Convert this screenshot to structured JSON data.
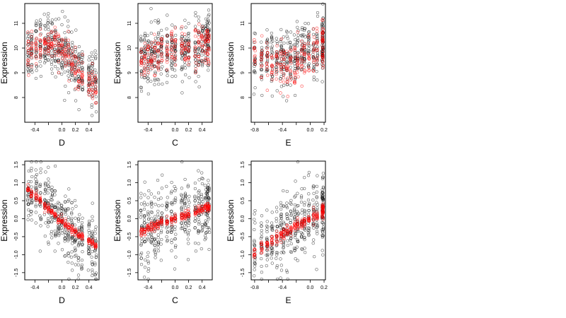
{
  "figure": {
    "layout": "2 rows x 3 columns of scatter panels",
    "colors": {
      "observed": "#000000",
      "fitted": "#ff0000",
      "frame": "#000000"
    },
    "marker": "open-circle"
  },
  "chart_data": [
    {
      "type": "scatter",
      "xlabel": "D",
      "ylabel": "Expression",
      "xlim": [
        -0.55,
        0.55
      ],
      "ylim": [
        7.0,
        11.8
      ],
      "xticks": [
        -0.4,
        -0.2,
        0.0,
        0.2,
        0.4
      ],
      "xtick_labels": [
        "-0.4",
        "",
        "0.0",
        "0.2",
        "0.4"
      ],
      "yticks": [
        8,
        9,
        10,
        11
      ],
      "ytick_labels": [
        "8",
        "9",
        "10",
        "11"
      ],
      "x_clusters": [
        -0.5,
        -0.45,
        -0.38,
        -0.32,
        -0.25,
        -0.2,
        -0.15,
        -0.1,
        -0.05,
        0.0,
        0.05,
        0.1,
        0.15,
        0.2,
        0.25,
        0.3,
        0.4,
        0.45,
        0.5
      ],
      "observed_summary": {
        "center": [
          9.9,
          10.0,
          10.1,
          10.1,
          10.2,
          10.2,
          10.2,
          10.1,
          10.0,
          9.9,
          9.8,
          9.6,
          9.4,
          9.2,
          9.1,
          8.9,
          8.8,
          8.6,
          8.6
        ],
        "spread": 0.55,
        "y_min": 7.9,
        "y_max": 11.6
      },
      "fitted_summary": {
        "center": [
          9.8,
          9.9,
          10.0,
          10.1,
          10.2,
          10.2,
          10.2,
          10.1,
          10.0,
          9.9,
          9.8,
          9.6,
          9.4,
          9.2,
          9.0,
          8.9,
          8.7,
          8.5,
          8.3
        ],
        "spread": 0.35
      }
    },
    {
      "type": "scatter",
      "xlabel": "C",
      "ylabel": "Expression",
      "xlim": [
        -0.55,
        0.55
      ],
      "ylim": [
        7.0,
        11.8
      ],
      "xticks": [
        -0.4,
        -0.2,
        0.0,
        0.2,
        0.4
      ],
      "xtick_labels": [
        "-0.4",
        "",
        "0.0",
        "0.2",
        "0.4"
      ],
      "yticks": [
        8,
        9,
        10,
        11
      ],
      "ytick_labels": [
        "8",
        "9",
        "10",
        "11"
      ],
      "x_clusters": [
        -0.5,
        -0.45,
        -0.4,
        -0.35,
        -0.3,
        -0.25,
        -0.2,
        -0.12,
        -0.05,
        0.0,
        0.1,
        0.15,
        0.2,
        0.3,
        0.35,
        0.4,
        0.45,
        0.48,
        0.5
      ],
      "observed_summary": {
        "center": [
          9.5,
          9.6,
          9.6,
          9.7,
          9.7,
          9.8,
          9.8,
          9.8,
          9.9,
          9.9,
          9.9,
          10.0,
          10.0,
          10.0,
          10.0,
          10.1,
          10.1,
          10.1,
          10.2
        ],
        "spread": 0.6,
        "y_min": 7.9,
        "y_max": 11.6
      },
      "fitted_summary": {
        "center": [
          9.5,
          9.55,
          9.6,
          9.65,
          9.7,
          9.75,
          9.8,
          9.85,
          9.9,
          9.9,
          9.95,
          10.0,
          10.0,
          10.05,
          10.1,
          10.1,
          10.15,
          10.2,
          10.2
        ],
        "spread": 0.4
      }
    },
    {
      "type": "scatter",
      "xlabel": "E",
      "ylabel": "Expression",
      "xlim": [
        -0.85,
        0.22
      ],
      "ylim": [
        7.0,
        11.8
      ],
      "xticks": [
        -0.8,
        -0.6,
        -0.4,
        -0.2,
        0.0,
        0.2
      ],
      "xtick_labels": [
        "-0.8",
        "",
        "-0.4",
        "",
        "0.0",
        "0.2"
      ],
      "yticks": [
        8,
        9,
        10,
        11
      ],
      "ytick_labels": [
        "8",
        "9",
        "10",
        "11"
      ],
      "x_clusters": [
        -0.8,
        -0.7,
        -0.62,
        -0.55,
        -0.48,
        -0.42,
        -0.38,
        -0.33,
        -0.28,
        -0.22,
        -0.18,
        -0.12,
        -0.08,
        -0.02,
        0.05,
        0.1,
        0.18,
        0.18,
        0.18
      ],
      "observed_summary": {
        "center": [
          9.4,
          9.4,
          9.5,
          9.5,
          9.5,
          9.6,
          9.6,
          9.7,
          9.6,
          9.7,
          9.8,
          9.8,
          9.9,
          9.9,
          10.0,
          10.0,
          10.2,
          10.3,
          10.0
        ],
        "spread": 0.55,
        "y_min": 8.3,
        "y_max": 11.6
      },
      "fitted_summary": {
        "center": [
          9.5,
          9.4,
          9.3,
          9.2,
          9.3,
          9.4,
          9.3,
          9.2,
          9.3,
          9.2,
          9.4,
          9.5,
          9.6,
          9.7,
          9.8,
          9.9,
          10.2,
          10.4,
          9.6
        ],
        "spread": 0.5
      }
    },
    {
      "type": "scatter",
      "xlabel": "D",
      "ylabel": "Expression",
      "xlim": [
        -0.55,
        0.55
      ],
      "ylim": [
        -1.7,
        1.6
      ],
      "xticks": [
        -0.4,
        -0.2,
        0.0,
        0.2,
        0.4
      ],
      "xtick_labels": [
        "-0.4",
        "",
        "0.0",
        "0.2",
        "0.4"
      ],
      "yticks": [
        -1.5,
        -1.0,
        -0.5,
        0.0,
        0.5,
        1.0,
        1.5
      ],
      "ytick_labels": [
        "-1.5",
        "-1.0",
        "-0.5",
        "0.0",
        "0.5",
        "1.0",
        "1.5"
      ],
      "x_clusters": [
        -0.5,
        -0.45,
        -0.38,
        -0.32,
        -0.25,
        -0.2,
        -0.15,
        -0.1,
        -0.05,
        0.0,
        0.05,
        0.1,
        0.15,
        0.2,
        0.25,
        0.3,
        0.4,
        0.45,
        0.5
      ],
      "observed_summary": {
        "center": [
          0.75,
          0.65,
          0.55,
          0.45,
          0.35,
          0.25,
          0.15,
          0.05,
          -0.05,
          -0.1,
          -0.2,
          -0.3,
          -0.35,
          -0.45,
          -0.5,
          -0.55,
          -0.65,
          -0.7,
          -0.75
        ],
        "spread": 0.45,
        "y_min": -1.6,
        "y_max": 1.4
      },
      "fitted_summary": {
        "center": [
          0.8,
          0.72,
          0.6,
          0.5,
          0.38,
          0.3,
          0.2,
          0.1,
          0.0,
          -0.05,
          -0.15,
          -0.25,
          -0.3,
          -0.35,
          -0.45,
          -0.5,
          -0.6,
          -0.68,
          -0.75
        ],
        "spread": 0.06
      }
    },
    {
      "type": "scatter",
      "xlabel": "C",
      "ylabel": "Expression",
      "xlim": [
        -0.55,
        0.55
      ],
      "ylim": [
        -1.7,
        1.6
      ],
      "xticks": [
        -0.4,
        -0.2,
        0.0,
        0.2,
        0.4
      ],
      "xtick_labels": [
        "-0.4",
        "",
        "0.0",
        "0.2",
        "0.4"
      ],
      "yticks": [
        -1.5,
        -1.0,
        -0.5,
        0.0,
        0.5,
        1.0,
        1.5
      ],
      "ytick_labels": [
        "-1.5",
        "-1.0",
        "-0.5",
        "0.0",
        "0.5",
        "1.0",
        "1.5"
      ],
      "x_clusters": [
        -0.5,
        -0.45,
        -0.4,
        -0.35,
        -0.3,
        -0.25,
        -0.2,
        -0.12,
        -0.05,
        0.0,
        0.1,
        0.15,
        0.2,
        0.3,
        0.35,
        0.4,
        0.45,
        0.48,
        0.5
      ],
      "observed_summary": {
        "center": [
          -0.35,
          -0.3,
          -0.28,
          -0.22,
          -0.2,
          -0.15,
          -0.1,
          -0.05,
          0.0,
          0.0,
          0.05,
          0.1,
          0.12,
          0.18,
          0.2,
          0.25,
          0.28,
          0.3,
          0.3
        ],
        "spread": 0.5,
        "y_min": -1.6,
        "y_max": 1.5
      },
      "fitted_summary": {
        "center": [
          -0.35,
          -0.32,
          -0.28,
          -0.24,
          -0.2,
          -0.16,
          -0.12,
          -0.07,
          -0.02,
          0.0,
          0.06,
          0.1,
          0.13,
          0.19,
          0.22,
          0.26,
          0.29,
          0.31,
          0.33
        ],
        "spread": 0.06
      }
    },
    {
      "type": "scatter",
      "xlabel": "E",
      "ylabel": "Expression",
      "xlim": [
        -0.85,
        0.22
      ],
      "ylim": [
        -1.7,
        1.6
      ],
      "xticks": [
        -0.8,
        -0.6,
        -0.4,
        -0.2,
        0.0,
        0.2
      ],
      "xtick_labels": [
        "-0.8",
        "",
        "-0.4",
        "",
        "0.0",
        "0.2"
      ],
      "yticks": [
        -1.5,
        -1.0,
        -0.5,
        0.0,
        0.5,
        1.0,
        1.5
      ],
      "ytick_labels": [
        "-1.5",
        "-1.0",
        "-0.5",
        "0.0",
        "0.5",
        "1.0",
        "1.5"
      ],
      "x_clusters": [
        -0.8,
        -0.7,
        -0.62,
        -0.55,
        -0.48,
        -0.42,
        -0.38,
        -0.33,
        -0.28,
        -0.22,
        -0.18,
        -0.12,
        -0.08,
        -0.02,
        0.05,
        0.1,
        0.18,
        0.18,
        0.18
      ],
      "observed_summary": {
        "center": [
          -0.9,
          -0.75,
          -0.65,
          -0.55,
          -0.5,
          -0.4,
          -0.35,
          -0.3,
          -0.25,
          -0.2,
          -0.15,
          -0.1,
          -0.05,
          0.0,
          0.1,
          0.15,
          0.3,
          0.0,
          0.5
        ],
        "spread": 0.5,
        "y_min": -1.5,
        "y_max": 1.5
      },
      "fitted_summary": {
        "center": [
          -0.95,
          -0.8,
          -0.7,
          -0.6,
          -0.52,
          -0.45,
          -0.4,
          -0.35,
          -0.3,
          -0.22,
          -0.18,
          -0.12,
          -0.08,
          -0.02,
          0.05,
          0.1,
          0.25,
          0.3,
          0.1
        ],
        "spread": 0.08
      }
    }
  ]
}
